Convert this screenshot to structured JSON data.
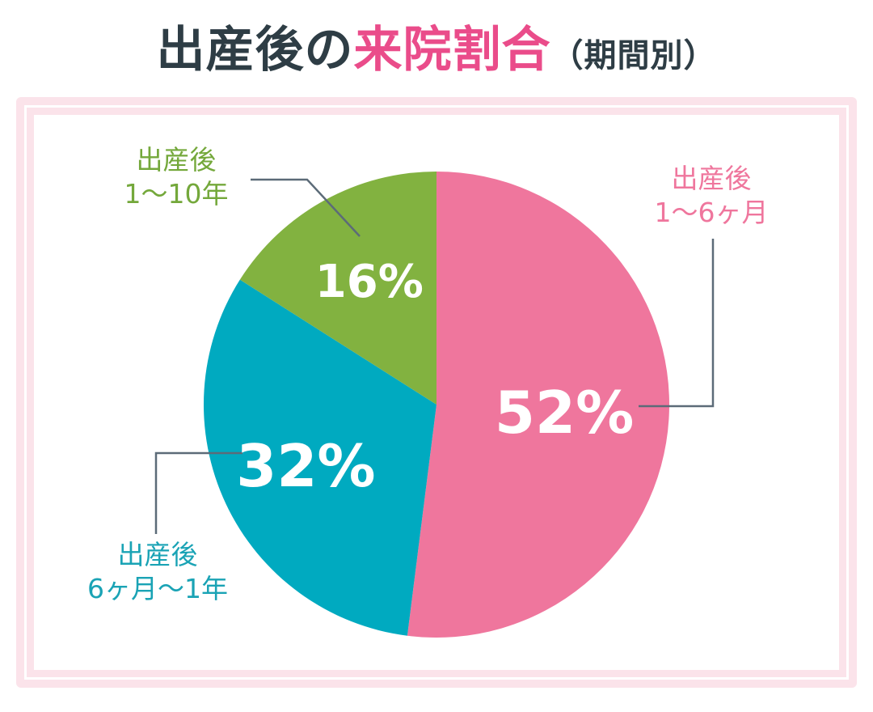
{
  "title": {
    "part1": "出産後の",
    "part2": "来院割合",
    "part3": "（期間別）",
    "accent_color": "#ea4c8a",
    "text_color": "#2e3d45"
  },
  "chart_data": {
    "type": "pie",
    "title": "出産後の来院割合（期間別）",
    "start_angle_deg": 0,
    "direction": "clockwise",
    "slices": [
      {
        "value": 52,
        "value_label": "52%",
        "category_lines": [
          "出産後",
          "1〜6ヶ月"
        ],
        "color": "#ef769d",
        "label_color": "#ef769d"
      },
      {
        "value": 32,
        "value_label": "32%",
        "category_lines": [
          "出産後",
          "6ヶ月〜1年"
        ],
        "color": "#00aac0",
        "label_color": "#1aa3b5"
      },
      {
        "value": 16,
        "value_label": "16%",
        "category_lines": [
          "出産後",
          "1〜10年"
        ],
        "color": "#82b240",
        "label_color": "#74a83b"
      }
    ],
    "leader_line_color": "#5c6b78"
  }
}
